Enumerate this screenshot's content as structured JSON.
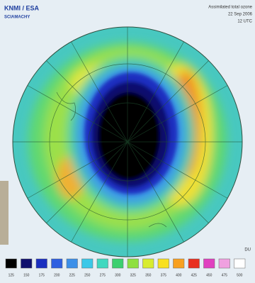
{
  "header": {
    "source": "KNMI / ESA",
    "instrument": "SCIAMACHY",
    "title": "Assimilated total ozone",
    "date": "22 Sep 2006",
    "time": "12 UTC"
  },
  "legend": {
    "unit": "DU",
    "items": [
      {
        "color": "#000000",
        "label": "125"
      },
      {
        "color": "#10106e",
        "label": "150"
      },
      {
        "color": "#1a2fc0",
        "label": "175"
      },
      {
        "color": "#2f5fe0",
        "label": "200"
      },
      {
        "color": "#3c8fe8",
        "label": "225"
      },
      {
        "color": "#3cc8e8",
        "label": "250"
      },
      {
        "color": "#40d8c0",
        "label": "275"
      },
      {
        "color": "#3cd070",
        "label": "300"
      },
      {
        "color": "#8ee040",
        "label": "325"
      },
      {
        "color": "#d8ec30",
        "label": "350"
      },
      {
        "color": "#f8e020",
        "label": "375"
      },
      {
        "color": "#f8a020",
        "label": "400"
      },
      {
        "color": "#e83020",
        "label": "425"
      },
      {
        "color": "#e040c0",
        "label": "450"
      },
      {
        "color": "#f0a0e0",
        "label": "475"
      },
      {
        "color": "#ffffff",
        "label": "500"
      }
    ]
  }
}
